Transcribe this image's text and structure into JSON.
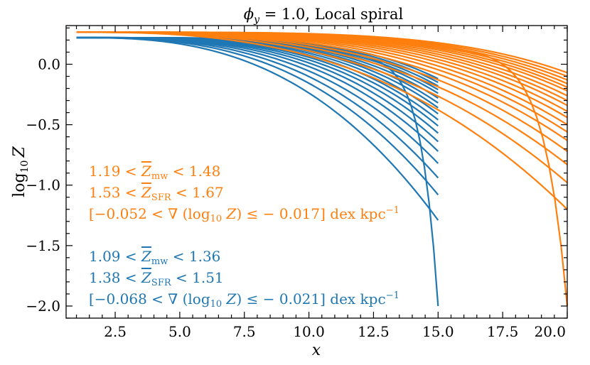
{
  "chart_data": {
    "type": "line",
    "title": "ϕy = 1.0, Local spiral",
    "title_main": "ϕ",
    "title_sub": "y",
    "title_rest": " = 1.0, Local spiral",
    "xlabel": "x",
    "ylabel": "log10 Z",
    "ylabel_main": "log",
    "ylabel_sub": "10",
    "ylabel_var": "Z",
    "xlim": [
      0.6,
      20.0
    ],
    "ylim": [
      -2.1,
      0.32
    ],
    "xticks": [
      2.5,
      5.0,
      7.5,
      10.0,
      12.5,
      15.0,
      17.5,
      20.0
    ],
    "xtick_labels": [
      "2.5",
      "5.0",
      "7.5",
      "10.0",
      "12.5",
      "15.0",
      "17.5",
      "20.0"
    ],
    "yticks": [
      0.0,
      -0.5,
      -1.0,
      -1.5,
      -2.0
    ],
    "ytick_labels": [
      "0.0",
      "−0.5",
      "−1.0",
      "−1.5",
      "−2.0"
    ],
    "series_groups": [
      {
        "name": "blue family",
        "color": "#1f77b4",
        "x_start": 1.0,
        "x_end": 15.0,
        "y_start": 0.22,
        "end_values": [
          -0.12,
          -0.15,
          -0.18,
          -0.21,
          -0.24,
          -0.28,
          -0.32,
          -0.36,
          -0.41,
          -0.46,
          -0.51,
          -0.57,
          -0.64,
          -0.72,
          -0.82,
          -0.94,
          -1.08,
          -1.29,
          -2.0
        ]
      },
      {
        "name": "orange family",
        "color": "#ff7f0e",
        "x_start": 1.0,
        "x_end": 20.0,
        "y_start": 0.265,
        "end_values": [
          -0.07,
          -0.1,
          -0.13,
          -0.16,
          -0.19,
          -0.22,
          -0.26,
          -0.3,
          -0.34,
          -0.39,
          -0.44,
          -0.5,
          -0.56,
          -0.63,
          -0.72,
          -0.83,
          -0.98,
          -1.2,
          -2.0
        ]
      }
    ],
    "annotations": {
      "orange": {
        "color": "#ff7f0e",
        "line1": "1.19 < Z̄mw < 1.48",
        "line2": "1.53 < Z̄SFR < 1.67",
        "line3": "[−0.052 < ∇ (log10 Z) ≤ − 0.017] dex kpc−1",
        "l1_a": "1.19 < ",
        "l1_var": "Z",
        "l1_sub": "mw",
        "l1_b": " < 1.48",
        "l2_a": "1.53 < ",
        "l2_var": "Z",
        "l2_sub": "SFR",
        "l2_b": " < 1.67",
        "l3_a": "[−0.052 < ∇ (log",
        "l3_sub": "10",
        "l3_var": " Z",
        "l3_b": ") ≤ − 0.017] dex kpc",
        "l3_sup": "−1"
      },
      "blue": {
        "color": "#1f77b4",
        "line1": "1.09 < Z̄mw < 1.36",
        "line2": "1.38 < Z̄SFR < 1.51",
        "line3": "[−0.068 < ∇ (log10 Z) ≤ − 0.021] dex kpc−1",
        "l1_a": "1.09 < ",
        "l1_var": "Z",
        "l1_sub": "mw",
        "l1_b": " < 1.36",
        "l2_a": "1.38 < ",
        "l2_var": "Z",
        "l2_sub": "SFR",
        "l2_b": " < 1.51",
        "l3_a": "[−0.068 < ∇ (log",
        "l3_sub": "10",
        "l3_var": " Z",
        "l3_b": ") ≤ − 0.021] dex kpc",
        "l3_sup": "−1"
      }
    }
  }
}
